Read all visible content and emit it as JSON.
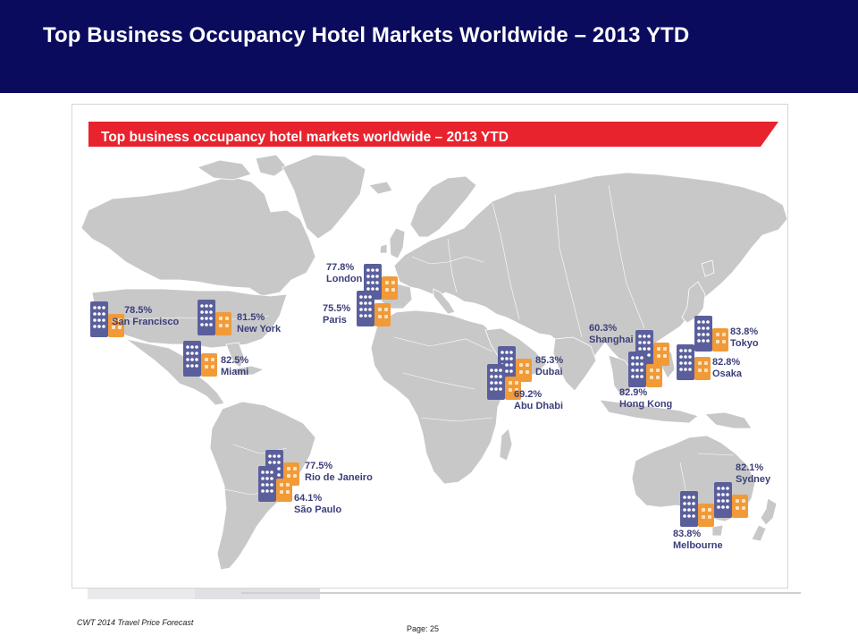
{
  "slide": {
    "title": "Top Business Occupancy Hotel Markets Worldwide – 2013 YTD",
    "footer_source": "CWT 2014 Travel Price Forecast",
    "footer_page": "Page: 25"
  },
  "figure": {
    "banner_title": "Top business occupancy hotel markets worldwide – 2013 YTD",
    "colors": {
      "banner": "#e8232e",
      "land": "#c8c8c8",
      "hotel_blue": "#5a5f9c",
      "hotel_orange": "#f19a38",
      "label": "#3a3f7a"
    },
    "markets": [
      {
        "city": "San Francisco",
        "occupancy": "78.5%",
        "icon": "hotel-pair-icon"
      },
      {
        "city": "New York",
        "occupancy": "81.5%",
        "icon": "hotel-pair-icon"
      },
      {
        "city": "Miami",
        "occupancy": "82.5%",
        "icon": "hotel-pair-icon"
      },
      {
        "city": "London",
        "occupancy": "77.8%",
        "icon": "hotel-pair-icon"
      },
      {
        "city": "Paris",
        "occupancy": "75.5%",
        "icon": "hotel-pair-icon"
      },
      {
        "city": "Dubai",
        "occupancy": "85.3%",
        "icon": "hotel-pair-icon"
      },
      {
        "city": "Abu Dhabi",
        "occupancy": "69.2%",
        "icon": "hotel-pair-icon"
      },
      {
        "city": "Shanghai",
        "occupancy": "60.3%",
        "icon": "hotel-pair-icon"
      },
      {
        "city": "Hong Kong",
        "occupancy": "82.9%",
        "icon": "hotel-pair-icon"
      },
      {
        "city": "Tokyo",
        "occupancy": "83.8%",
        "icon": "hotel-pair-icon"
      },
      {
        "city": "Osaka",
        "occupancy": "82.8%",
        "icon": "hotel-pair-icon"
      },
      {
        "city": "Rio de Janeiro",
        "occupancy": "77.5%",
        "icon": "hotel-pair-icon"
      },
      {
        "city": "São Paulo",
        "occupancy": "64.1%",
        "icon": "hotel-pair-icon"
      },
      {
        "city": "Sydney",
        "occupancy": "82.1%",
        "icon": "hotel-pair-icon"
      },
      {
        "city": "Melbourne",
        "occupancy": "83.8%",
        "icon": "hotel-pair-icon"
      }
    ]
  }
}
